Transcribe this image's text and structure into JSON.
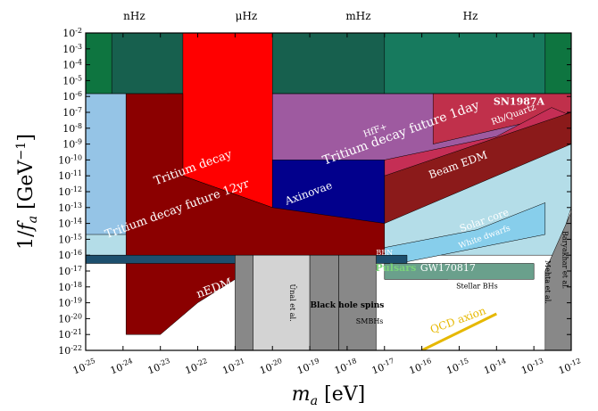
{
  "chart_data": {
    "type": "area",
    "title": "",
    "xlabel": "m_a [eV]",
    "ylabel": "1/f_a [GeV^-1]",
    "x_scale": "log",
    "y_scale": "log",
    "xlim": [
      1e-25,
      1e-12
    ],
    "ylim": [
      1e-22,
      0.01
    ],
    "x_ticks": [
      {
        "v": 1e-25,
        "label": "10^-25"
      },
      {
        "v": 1e-24,
        "label": "10^-24"
      },
      {
        "v": 1e-23,
        "label": "10^-23"
      },
      {
        "v": 1e-22,
        "label": "10^-22"
      },
      {
        "v": 1e-21,
        "label": "10^-21"
      },
      {
        "v": 1e-20,
        "label": "10^-20"
      },
      {
        "v": 1e-19,
        "label": "10^-19"
      },
      {
        "v": 1e-18,
        "label": "10^-18"
      },
      {
        "v": 1e-17,
        "label": "10^-17"
      },
      {
        "v": 1e-16,
        "label": "10^-16"
      },
      {
        "v": 1e-15,
        "label": "10^-15"
      },
      {
        "v": 1e-14,
        "label": "10^-14"
      },
      {
        "v": 1e-13,
        "label": "10^-13"
      },
      {
        "v": 1e-12,
        "label": "10^-12"
      }
    ],
    "y_ticks": [
      {
        "v": 0.01,
        "label": "10^-2"
      },
      {
        "v": 0.001,
        "label": "10^-3"
      },
      {
        "v": 0.0001,
        "label": "10^-4"
      },
      {
        "v": 1e-05,
        "label": "10^-5"
      },
      {
        "v": 1e-06,
        "label": "10^-6"
      },
      {
        "v": 1e-07,
        "label": "10^-7"
      },
      {
        "v": 1e-08,
        "label": "10^-8"
      },
      {
        "v": 1e-09,
        "label": "10^-9"
      },
      {
        "v": 1e-10,
        "label": "10^-10"
      },
      {
        "v": 1e-11,
        "label": "10^-11"
      },
      {
        "v": 1e-12,
        "label": "10^-12"
      },
      {
        "v": 1e-13,
        "label": "10^-13"
      },
      {
        "v": 1e-14,
        "label": "10^-14"
      },
      {
        "v": 1e-15,
        "label": "10^-15"
      },
      {
        "v": 1e-16,
        "label": "10^-16"
      },
      {
        "v": 1e-17,
        "label": "10^-17"
      },
      {
        "v": 1e-18,
        "label": "10^-18"
      },
      {
        "v": 1e-19,
        "label": "10^-19"
      },
      {
        "v": 1e-20,
        "label": "10^-20"
      },
      {
        "v": 1e-21,
        "label": "10^-21"
      },
      {
        "v": 1e-22,
        "label": "10^-22"
      }
    ],
    "frequency_axis": [
      {
        "x": 2e-24,
        "label": "nHz"
      },
      {
        "x": 2e-21,
        "label": "μHz"
      },
      {
        "x": 2e-18,
        "label": "mHz"
      },
      {
        "x": 2e-15,
        "label": "Hz"
      }
    ],
    "regions": [
      {
        "name": "SN1987A bound",
        "fill": "#17604e",
        "points": [
          [
            1e-25,
            0.01
          ],
          [
            1e-12,
            0.01
          ],
          [
            1e-12,
            1.5e-06
          ],
          [
            1e-25,
            1.5e-06
          ]
        ]
      },
      {
        "name": "",
        "fill": "#0e7540",
        "points": [
          [
            1e-25,
            0.01
          ],
          [
            5e-25,
            0.01
          ],
          [
            5e-25,
            1.5e-06
          ],
          [
            1e-25,
            1.5e-06
          ]
        ]
      },
      {
        "name": "",
        "fill": "#0e7540",
        "points": [
          [
            2e-13,
            0.01
          ],
          [
            1e-12,
            0.01
          ],
          [
            1e-12,
            1.5e-06
          ],
          [
            2e-13,
            1.5e-06
          ]
        ]
      },
      {
        "name": "",
        "fill": "#177a5e",
        "points": [
          [
            1e-17,
            0.01
          ],
          [
            2e-13,
            0.01
          ],
          [
            2e-13,
            1.5e-06
          ],
          [
            1e-17,
            1.5e-06
          ]
        ]
      },
      {
        "name": "Solar core",
        "fill": "#b4dde8",
        "points": [
          [
            1e-25,
            1.5e-06
          ],
          [
            1e-12,
            1.5e-06
          ],
          [
            1e-12,
            1e-13
          ],
          [
            4e-13,
            1e-16
          ],
          [
            1e-25,
            1e-16
          ]
        ]
      },
      {
        "name": "",
        "fill": "#95c4e6",
        "points": [
          [
            1e-25,
            1.5e-06
          ],
          [
            1.2e-24,
            1.5e-06
          ],
          [
            1.2e-24,
            2e-15
          ],
          [
            1e-25,
            2e-15
          ]
        ]
      },
      {
        "name": "White dwarfs",
        "fill": "#87ceeb",
        "points": [
          [
            1e-17,
            3e-16
          ],
          [
            3e-15,
            4e-15
          ],
          [
            2e-13,
            2e-13
          ],
          [
            2e-13,
            2e-15
          ],
          [
            1e-17,
            2e-17
          ]
        ]
      },
      {
        "name": "Tritium decay future 12yr",
        "fill": "#8e4f90",
        "points": [
          [
            1.5e-23,
            1.5e-06
          ],
          [
            1e-12,
            1.5e-06
          ],
          [
            1e-12,
            2e-08
          ],
          [
            1.5e-23,
            3e-16
          ]
        ]
      },
      {
        "name": "Tritium decay future 1day",
        "fill": "#9e5aa0",
        "points": [
          [
            1e-20,
            1.5e-06
          ],
          [
            1e-12,
            1.5e-06
          ],
          [
            1e-12,
            5e-09
          ],
          [
            1e-20,
            1e-13
          ]
        ]
      },
      {
        "name": "Tritium decay",
        "fill": "#ff0000",
        "points": [
          [
            4e-23,
            0.01
          ],
          [
            1e-20,
            0.01
          ],
          [
            1e-20,
            1e-13
          ],
          [
            4e-23,
            1e-11
          ]
        ]
      },
      {
        "name": "HfF+",
        "fill": "#c0304b",
        "points": [
          [
            2e-16,
            1.5e-06
          ],
          [
            1e-12,
            1.5e-06
          ],
          [
            1e-12,
            1e-07
          ],
          [
            2e-16,
            1e-09
          ]
        ]
      },
      {
        "name": "Rb/Quartz",
        "fill": "#c52e55",
        "points": [
          [
            1e-17,
            1e-10
          ],
          [
            1e-14,
            3e-09
          ],
          [
            3e-13,
            2e-07
          ],
          [
            1e-12,
            6e-08
          ],
          [
            1e-12,
            1e-09
          ],
          [
            1e-17,
            1e-11
          ]
        ]
      },
      {
        "name": "Beam EDM",
        "fill": "#8b1a1a",
        "points": [
          [
            1e-17,
            1e-11
          ],
          [
            1e-12,
            1e-07
          ],
          [
            1e-12,
            1e-09
          ],
          [
            1e-16,
            1e-13
          ],
          [
            1e-17,
            1e-14
          ]
        ]
      },
      {
        "name": "Axinovae",
        "fill": "#02008c",
        "points": [
          [
            1e-20,
            1e-10
          ],
          [
            1e-17,
            1e-10
          ],
          [
            1e-17,
            1e-14
          ],
          [
            1e-20,
            1e-15
          ]
        ]
      },
      {
        "name": "nEDM",
        "fill": "#8b0000",
        "points": [
          [
            1.2e-24,
            1.5e-06
          ],
          [
            4e-23,
            1.5e-06
          ],
          [
            4e-23,
            1e-11
          ],
          [
            1e-20,
            1e-13
          ],
          [
            1e-17,
            1e-14
          ],
          [
            1e-17,
            1e-16
          ],
          [
            1e-19,
            3e-17
          ],
          [
            1e-21,
            3e-18
          ],
          [
            1e-22,
            1e-19
          ],
          [
            1e-23,
            1e-21
          ],
          [
            1.2e-24,
            1e-21
          ]
        ]
      },
      {
        "name": "BBN",
        "fill": "#1d4f6e",
        "points": [
          [
            1e-25,
            3e-17
          ],
          [
            4e-17,
            3e-17
          ],
          [
            4e-17,
            1e-16
          ],
          [
            1e-25,
            1e-16
          ]
        ]
      },
      {
        "name": "Pulsars",
        "fill": "#345a48",
        "points": [
          [
            1e-17,
            8e-18
          ],
          [
            5e-16,
            8e-18
          ],
          [
            5e-16,
            3e-18
          ],
          [
            1e-17,
            3e-18
          ]
        ]
      },
      {
        "name": "GW170817",
        "fill": "#6aa08c",
        "points": [
          [
            1e-17,
            3e-17
          ],
          [
            1e-13,
            3e-17
          ],
          [
            1e-13,
            3e-18
          ],
          [
            1e-17,
            3e-18
          ]
        ]
      },
      {
        "name": "Ünal et al.",
        "fill": "#d3d3d3",
        "points": [
          [
            3e-21,
            1e-22
          ],
          [
            1e-19,
            1e-22
          ],
          [
            1e-19,
            1e-16
          ],
          [
            3e-21,
            1e-16
          ]
        ]
      },
      {
        "name": "Black hole spins",
        "fill": "#888888",
        "points": [
          [
            1e-21,
            1e-22
          ],
          [
            3e-21,
            1e-22
          ],
          [
            3e-21,
            1e-16
          ],
          [
            1e-21,
            1e-16
          ]
        ]
      },
      {
        "name": "",
        "fill": "#888888",
        "points": [
          [
            1e-19,
            1e-22
          ],
          [
            6e-19,
            1e-22
          ],
          [
            6e-19,
            1e-16
          ],
          [
            1e-19,
            1e-16
          ]
        ]
      },
      {
        "name": "SMBHs",
        "fill": "#888888",
        "points": [
          [
            6e-19,
            1e-22
          ],
          [
            6e-18,
            1e-22
          ],
          [
            6e-18,
            1e-16
          ],
          [
            6e-19,
            1e-16
          ]
        ]
      },
      {
        "name": "Baryakhar et al.",
        "fill": "#888888",
        "points": [
          [
            2e-13,
            1e-22
          ],
          [
            1e-12,
            1e-22
          ],
          [
            1e-12,
            5e-14
          ],
          [
            2e-13,
            1e-17
          ]
        ]
      }
    ],
    "lines": [
      {
        "name": "QCD axion",
        "color": "#e6b800",
        "points": [
          [
            1e-16,
            1e-22
          ],
          [
            1e-14,
            2e-20
          ]
        ]
      }
    ],
    "labels": [
      {
        "text": "SN1987A",
        "x": 4e-14,
        "y": 3e-07,
        "color": "#ffffff",
        "rot": 0,
        "size": 11,
        "bold": true
      },
      {
        "text": "Rb/Quartz",
        "x": 3e-14,
        "y": 5e-08,
        "color": "#ffffff",
        "rot": -20,
        "size": 10
      },
      {
        "text": "Tritium decay future 1day",
        "x": 3e-17,
        "y": 3e-09,
        "color": "#ffffff",
        "rot": -20,
        "size": 14
      },
      {
        "text": "HfF+",
        "x": 6e-18,
        "y": 5e-09,
        "color": "#ffffff",
        "rot": -20,
        "size": 10
      },
      {
        "text": "Tritium decay",
        "x": 8e-23,
        "y": 2e-11,
        "color": "#ffffff",
        "rot": -20,
        "size": 13
      },
      {
        "text": "Tritium decay future 12yr",
        "x": 3e-23,
        "y": 5e-14,
        "color": "#ffffff",
        "rot": -20,
        "size": 13
      },
      {
        "text": "Beam EDM",
        "x": 1e-15,
        "y": 3e-11,
        "color": "#ffffff",
        "rot": -20,
        "size": 12
      },
      {
        "text": "Axinovae",
        "x": 1e-19,
        "y": 5e-13,
        "color": "#ffffff",
        "rot": -20,
        "size": 12
      },
      {
        "text": "nEDM",
        "x": 3e-22,
        "y": 5e-19,
        "color": "#ffffff",
        "rot": -20,
        "size": 13
      },
      {
        "text": "Solar core",
        "x": 5e-15,
        "y": 1e-14,
        "color": "#ffffff",
        "rot": -20,
        "size": 11
      },
      {
        "text": "White dwarfs",
        "x": 5e-15,
        "y": 1e-15,
        "color": "#ffffff",
        "rot": -20,
        "size": 9
      },
      {
        "text": "BBN",
        "x": 1e-17,
        "y": 1e-16,
        "color": "#ffffff",
        "rot": 0,
        "size": 8
      },
      {
        "text": "Pulsars",
        "x": 2e-17,
        "y": 1e-17,
        "color": "#7ad37a",
        "rot": 0,
        "size": 11,
        "bold": true
      },
      {
        "text": "GW170817",
        "x": 5e-16,
        "y": 1e-17,
        "color": "#ffffff",
        "rot": 0,
        "size": 11
      },
      {
        "text": "Stellar BHs",
        "x": 3e-15,
        "y": 8e-19,
        "color": "#000000",
        "rot": 0,
        "size": 8
      },
      {
        "text": "Black hole spins",
        "x": 1e-18,
        "y": 5e-20,
        "color": "#000000",
        "rot": 0,
        "size": 9,
        "bold": true
      },
      {
        "text": "SMBHs",
        "x": 4e-18,
        "y": 5e-21,
        "color": "#000000",
        "rot": 0,
        "size": 8
      },
      {
        "text": "QCD axion",
        "x": 1e-15,
        "y": 5e-21,
        "color": "#e6b800",
        "rot": -20,
        "size": 12
      },
      {
        "text": "Ünal et al.",
        "x": 3e-20,
        "y": 1e-19,
        "color": "#000000",
        "rot": 90,
        "size": 8
      },
      {
        "text": "Mehta et al.",
        "x": 2e-13,
        "y": 2e-18,
        "color": "#000000",
        "rot": 90,
        "size": 8
      },
      {
        "text": "Baryakhar et al.",
        "x": 6e-13,
        "y": 5e-17,
        "color": "#000000",
        "rot": 90,
        "size": 8
      }
    ]
  }
}
